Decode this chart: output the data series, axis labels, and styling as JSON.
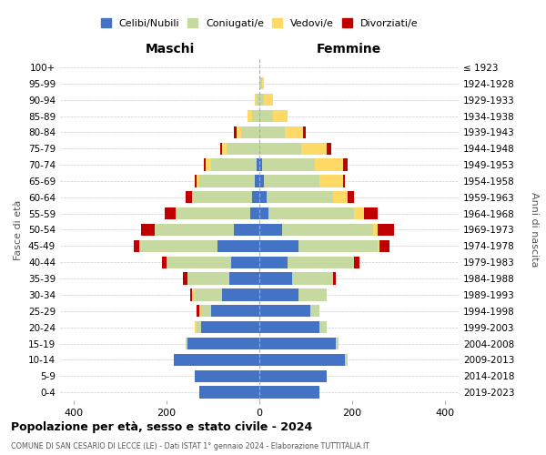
{
  "age_groups": [
    "0-4",
    "5-9",
    "10-14",
    "15-19",
    "20-24",
    "25-29",
    "30-34",
    "35-39",
    "40-44",
    "45-49",
    "50-54",
    "55-59",
    "60-64",
    "65-69",
    "70-74",
    "75-79",
    "80-84",
    "85-89",
    "90-94",
    "95-99",
    "100+"
  ],
  "birth_years": [
    "2019-2023",
    "2014-2018",
    "2009-2013",
    "2004-2008",
    "1999-2003",
    "1994-1998",
    "1989-1993",
    "1984-1988",
    "1979-1983",
    "1974-1978",
    "1969-1973",
    "1964-1968",
    "1959-1963",
    "1954-1958",
    "1949-1953",
    "1944-1948",
    "1939-1943",
    "1934-1938",
    "1929-1933",
    "1924-1928",
    "≤ 1923"
  ],
  "males": {
    "celibi": [
      130,
      140,
      185,
      155,
      125,
      105,
      80,
      65,
      60,
      90,
      55,
      20,
      15,
      10,
      5,
      0,
      0,
      0,
      0,
      0,
      0
    ],
    "coniugati": [
      0,
      0,
      0,
      5,
      10,
      20,
      60,
      90,
      140,
      170,
      170,
      160,
      130,
      120,
      100,
      70,
      40,
      15,
      5,
      0,
      0
    ],
    "vedovi": [
      0,
      0,
      0,
      0,
      5,
      5,
      5,
      0,
      0,
      0,
      0,
      0,
      0,
      5,
      10,
      10,
      10,
      10,
      5,
      0,
      0
    ],
    "divorziati": [
      0,
      0,
      0,
      0,
      0,
      5,
      5,
      10,
      10,
      10,
      30,
      25,
      15,
      5,
      5,
      5,
      5,
      0,
      0,
      0,
      0
    ]
  },
  "females": {
    "nubili": [
      130,
      145,
      185,
      165,
      130,
      110,
      85,
      70,
      60,
      85,
      50,
      20,
      15,
      10,
      5,
      0,
      0,
      0,
      0,
      0,
      0
    ],
    "coniugate": [
      0,
      0,
      5,
      5,
      15,
      20,
      60,
      90,
      145,
      170,
      195,
      185,
      145,
      120,
      115,
      90,
      55,
      30,
      10,
      5,
      0
    ],
    "vedove": [
      0,
      0,
      0,
      0,
      0,
      0,
      0,
      0,
      0,
      5,
      10,
      20,
      30,
      50,
      60,
      55,
      40,
      30,
      20,
      5,
      0
    ],
    "divorziate": [
      0,
      0,
      0,
      0,
      0,
      0,
      0,
      5,
      10,
      20,
      35,
      30,
      15,
      5,
      10,
      10,
      5,
      0,
      0,
      0,
      0
    ]
  },
  "colors": {
    "celibi_nubili": "#4472C4",
    "coniugati": "#C5D9A0",
    "vedovi": "#FFD966",
    "divorziati": "#C00000"
  },
  "xlim": 430,
  "title": "Popolazione per età, sesso e stato civile - 2024",
  "subtitle": "COMUNE DI SAN CESARIO DI LECCE (LE) - Dati ISTAT 1° gennaio 2024 - Elaborazione TUTTITALIA.IT",
  "ylabel_left": "Fasce di età",
  "ylabel_right": "Anni di nascita",
  "xlabel_maschi": "Maschi",
  "xlabel_femmine": "Femmine"
}
